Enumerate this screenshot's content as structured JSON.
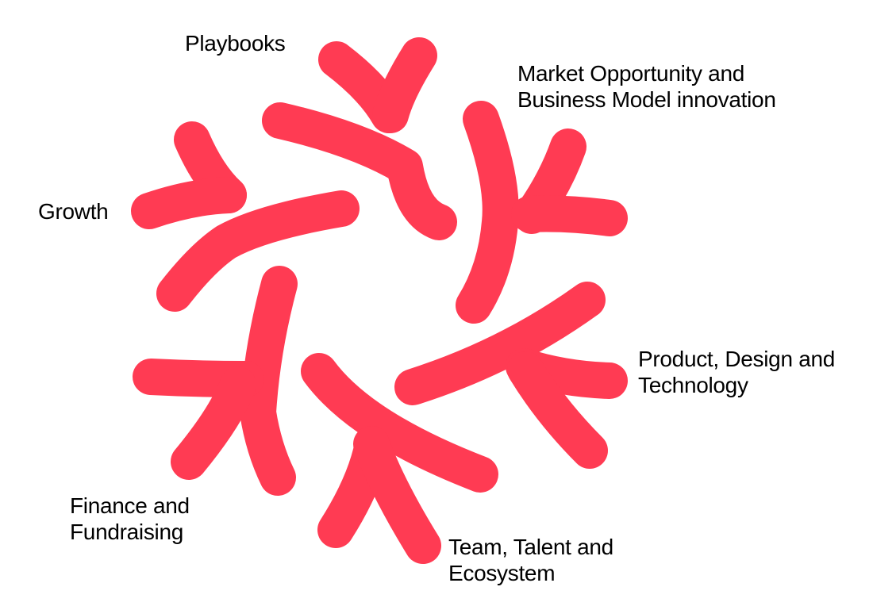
{
  "diagram": {
    "accent_color": "#ff3b53",
    "branches": [
      {
        "name": "playbooks",
        "lines": [
          "Playbooks"
        ]
      },
      {
        "name": "market-opportunity",
        "lines": [
          "Market Opportunity and",
          "Business Model innovation"
        ]
      },
      {
        "name": "growth",
        "lines": [
          "Growth"
        ]
      },
      {
        "name": "product-design-technology",
        "lines": [
          "Product, Design and",
          "Technology"
        ]
      },
      {
        "name": "finance-fundraising",
        "lines": [
          "Finance and",
          "Fundraising"
        ]
      },
      {
        "name": "team-talent-ecosystem",
        "lines": [
          "Team, Talent and",
          "Ecosystem"
        ]
      }
    ]
  }
}
